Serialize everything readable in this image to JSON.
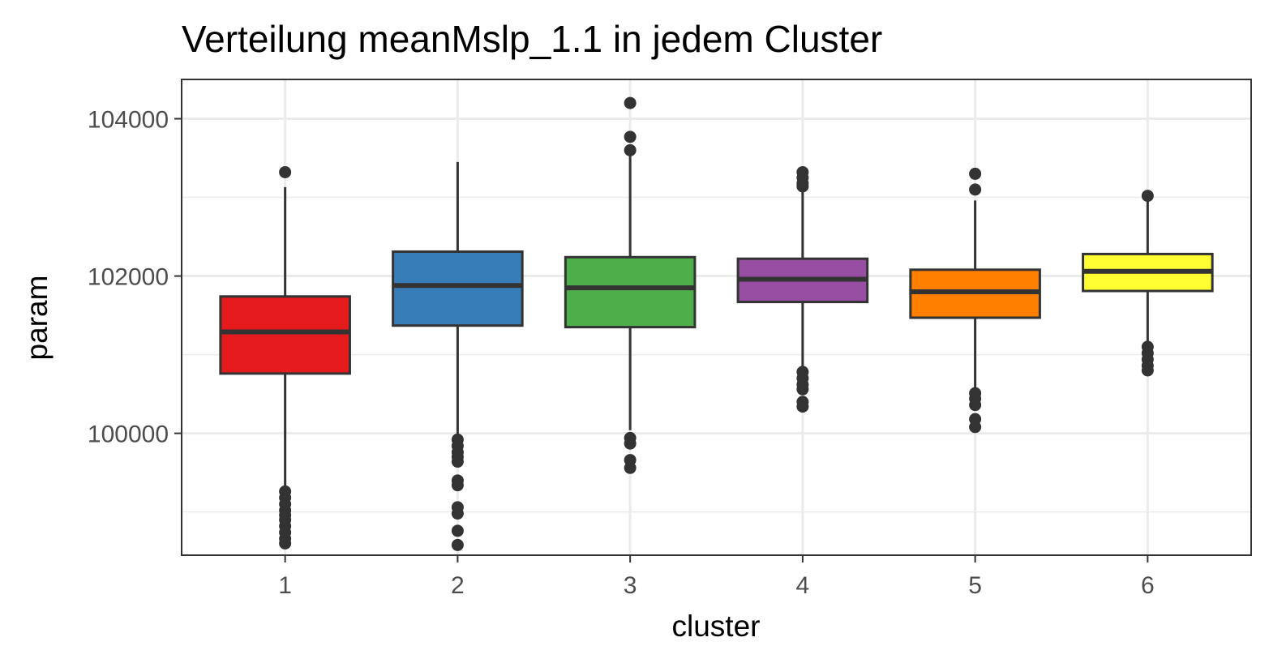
{
  "chart_data": {
    "type": "boxplot",
    "title": "Verteilung meanMslp_1.1 in jedem Cluster",
    "xlabel": "cluster",
    "ylabel": "param",
    "ylim": [
      98450,
      104500
    ],
    "y_ticks": [
      100000,
      102000,
      104000
    ],
    "grid": true,
    "legend": "none",
    "categories": [
      "1",
      "2",
      "3",
      "4",
      "5",
      "6"
    ],
    "boxes": [
      {
        "category": "1",
        "color": "#E41A1C",
        "whisker_low": 98600,
        "q1": 100760,
        "median": 101290,
        "q3": 101740,
        "whisker_high": 103130,
        "outliers": [
          103320,
          99260,
          99180,
          99100,
          99020,
          98960,
          98900,
          98820,
          98740,
          98660,
          98600
        ]
      },
      {
        "category": "2",
        "color": "#377EB8",
        "whisker_low": 99960,
        "q1": 101370,
        "median": 101880,
        "q3": 102310,
        "whisker_high": 103450,
        "outliers": [
          99920,
          99840,
          99760,
          99700,
          99640,
          99400,
          99340,
          99060,
          98980,
          98760,
          98580
        ]
      },
      {
        "category": "3",
        "color": "#4DAF4A",
        "whisker_low": 100040,
        "q1": 101350,
        "median": 101850,
        "q3": 102240,
        "whisker_high": 103560,
        "outliers": [
          104200,
          103770,
          103600,
          99940,
          99870,
          99660,
          99560
        ]
      },
      {
        "category": "4",
        "color": "#984EA3",
        "whisker_low": 100820,
        "q1": 101670,
        "median": 101960,
        "q3": 102220,
        "whisker_high": 103100,
        "outliers": [
          103320,
          103250,
          103180,
          103140,
          100780,
          100700,
          100620,
          100560,
          100400,
          100340
        ]
      },
      {
        "category": "5",
        "color": "#FF7F00",
        "whisker_low": 100560,
        "q1": 101470,
        "median": 101800,
        "q3": 102080,
        "whisker_high": 102960,
        "outliers": [
          103300,
          103100,
          100510,
          100440,
          100360,
          100180,
          100080
        ]
      },
      {
        "category": "6",
        "color": "#FFFF33",
        "whisker_low": 101140,
        "q1": 101810,
        "median": 102060,
        "q3": 102280,
        "whisker_high": 102960,
        "outliers": [
          103020,
          101100,
          101020,
          100940,
          100860,
          100800
        ]
      }
    ]
  }
}
